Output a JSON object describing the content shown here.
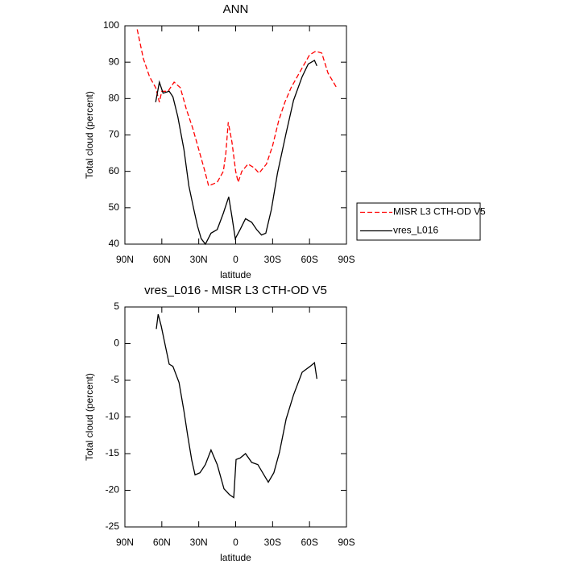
{
  "chart_data": [
    {
      "type": "line",
      "title": "ANN",
      "x_label": "latitude",
      "y_label": "Total cloud (percent)",
      "xlim": [
        90,
        -90
      ],
      "xticks": [
        {
          "value": 90,
          "label": "90N"
        },
        {
          "value": 60,
          "label": "60N"
        },
        {
          "value": 30,
          "label": "30N"
        },
        0,
        {
          "value": -30,
          "label": "30S"
        },
        {
          "value": -60,
          "label": "60S"
        },
        {
          "value": -90,
          "label": "90S"
        }
      ],
      "ylim": [
        40,
        100
      ],
      "yticks": [
        40,
        50,
        60,
        70,
        80,
        90,
        100
      ],
      "legend": "right",
      "series": [
        {
          "name": "MISR L3 CTH-OD V5",
          "color": "#ff0000",
          "dashed": true,
          "x": [
            80,
            75,
            70,
            65,
            62,
            60,
            55,
            50,
            45,
            40,
            35,
            30,
            25,
            22,
            15,
            10,
            8,
            6,
            3,
            0,
            -2,
            -5,
            -10,
            -15,
            -19,
            -25,
            -30,
            -35,
            -40,
            -45,
            -50,
            -55,
            -60,
            -65,
            -70,
            -75,
            -82
          ],
          "values": [
            99,
            91,
            86,
            83,
            79,
            82,
            82,
            84.5,
            83,
            77,
            72,
            66,
            60,
            56,
            57,
            60,
            65,
            73.5,
            68,
            60,
            57,
            60,
            62,
            61,
            59.5,
            62,
            67,
            74,
            79,
            83,
            86,
            89,
            92,
            93,
            92.5,
            87,
            83
          ]
        },
        {
          "name": "vres_L016",
          "color": "#000000",
          "dashed": false,
          "x": [
            65,
            62,
            59,
            54,
            51,
            47,
            42,
            38,
            34,
            31,
            28,
            24.6,
            20,
            15,
            10,
            5.6,
            3,
            0.3,
            -3.6,
            -8,
            -13,
            -17,
            -21,
            -24.5,
            -29,
            -34,
            -41,
            -47,
            -54,
            -59,
            -64,
            -66
          ],
          "values": [
            79,
            84.5,
            81.5,
            82,
            80.5,
            75,
            66,
            56,
            49.5,
            45,
            41.5,
            40,
            43,
            44,
            48.5,
            53,
            47.5,
            41.5,
            44,
            47,
            46,
            44,
            42.5,
            43,
            49.5,
            59.5,
            70.5,
            79.5,
            86,
            89.5,
            90.5,
            89
          ]
        }
      ]
    },
    {
      "type": "line",
      "title": "vres_L016 - MISR L3 CTH-OD V5",
      "x_label": "latitude",
      "y_label": "Total cloud (percent)",
      "xlim": [
        90,
        -90
      ],
      "xticks": [
        {
          "value": 90,
          "label": "90N"
        },
        {
          "value": 60,
          "label": "60N"
        },
        {
          "value": 30,
          "label": "30N"
        },
        0,
        {
          "value": -30,
          "label": "30S"
        },
        {
          "value": -60,
          "label": "60S"
        },
        {
          "value": -90,
          "label": "90S"
        }
      ],
      "ylim": [
        -25,
        5
      ],
      "yticks": [
        -25,
        -20,
        -15,
        -10,
        -5,
        0,
        5
      ],
      "color": "#000000",
      "x": [
        64.5,
        63,
        60.5,
        57,
        54,
        51,
        46,
        42,
        39,
        35.7,
        33,
        29,
        24.6,
        20,
        15,
        9.5,
        5,
        1.6,
        -0.3,
        -3.6,
        -8,
        -13,
        -18,
        -23,
        -26.5,
        -31,
        -35.6,
        -41,
        -47,
        -54,
        -60.5,
        -64,
        -66
      ],
      "values": [
        2,
        4,
        2.4,
        -0.4,
        -2.8,
        -3.1,
        -5.3,
        -9.2,
        -12.5,
        -15.9,
        -17.9,
        -17.6,
        -16.5,
        -14.5,
        -16.5,
        -19.8,
        -20.6,
        -21,
        -15.8,
        -15.6,
        -15,
        -16.2,
        -16.5,
        -17.9,
        -18.9,
        -17.6,
        -14.8,
        -10.3,
        -7,
        -3.9,
        -3.1,
        -2.6,
        -4.8
      ]
    }
  ]
}
